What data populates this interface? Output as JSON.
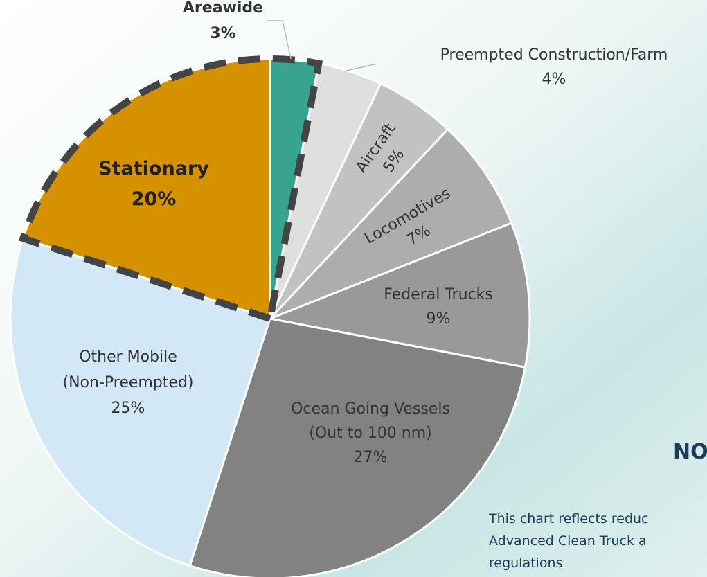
{
  "chart_data": {
    "type": "pie",
    "categories": [
      [
        "Areawide"
      ],
      [
        "Preempted Construction/Farm"
      ],
      [
        "Aircraft"
      ],
      [
        "Locomotives"
      ],
      [
        "Federal Trucks"
      ],
      [
        "Ocean Going Vessels",
        "(Out to 100 nm)"
      ],
      [
        "Other Mobile",
        "(Non-Preempted)"
      ],
      [
        "Stationary"
      ]
    ],
    "values": [
      3,
      4,
      5,
      7,
      9,
      27,
      25,
      20
    ],
    "value_labels": [
      "3%",
      "4%",
      "5%",
      "7%",
      "9%",
      "27%",
      "25%",
      "20%"
    ],
    "colors": [
      "#36a48e",
      "#dedede",
      "#c2c2c2",
      "#adadad",
      "#999999",
      "#828282",
      "#d2e8f6",
      "#d69100"
    ],
    "highlighted": [
      0,
      7
    ],
    "side_heading": "NO",
    "note_lines": [
      "This chart reflects reduc",
      "Advanced Clean Truck a",
      "regulations"
    ]
  }
}
